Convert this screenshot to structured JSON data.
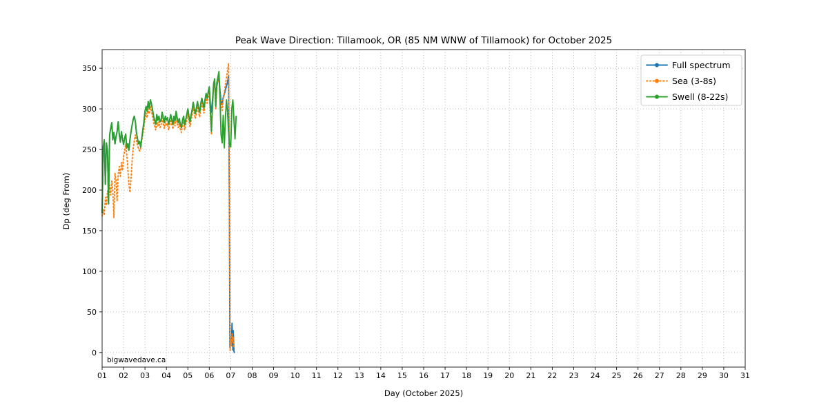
{
  "watermark": "bigwavedave.ca",
  "chart_data": {
    "type": "line",
    "title": "Peak Wave Direction: Tillamook, OR (85 NM WNW of Tillamook) for October 2025",
    "xlabel": "Day (October 2025)",
    "ylabel": "Dp (deg From)",
    "xlim": [
      1,
      31
    ],
    "ylim": [
      -18,
      373
    ],
    "yticks": [
      0,
      50,
      100,
      150,
      200,
      250,
      300,
      350
    ],
    "xticks": [
      "01",
      "02",
      "03",
      "04",
      "05",
      "06",
      "07",
      "08",
      "09",
      "10",
      "11",
      "12",
      "13",
      "14",
      "15",
      "16",
      "17",
      "18",
      "19",
      "20",
      "21",
      "22",
      "23",
      "24",
      "25",
      "26",
      "27",
      "28",
      "29",
      "30",
      "31"
    ],
    "grid": true,
    "grid_style": "dotted",
    "grid_color": "#b4b4b4",
    "legend_position": "upper right",
    "series": [
      {
        "name": "Full spectrum",
        "color": "#1f77b4",
        "style": "solid",
        "x": [
          1.0,
          1.05,
          1.1,
          1.15,
          1.2,
          1.25,
          1.3,
          1.35,
          1.4,
          1.45,
          1.5,
          1.55,
          1.6,
          1.65,
          1.7,
          1.75,
          1.8,
          1.85,
          1.9,
          1.95,
          2.0,
          2.05,
          2.1,
          2.15,
          2.2,
          2.25,
          2.3,
          2.35,
          2.4,
          2.45,
          2.5,
          2.55,
          2.6,
          2.65,
          2.7,
          2.75,
          2.8,
          2.85,
          2.9,
          2.95,
          3.0,
          3.05,
          3.1,
          3.15,
          3.2,
          3.25,
          3.3,
          3.35,
          3.4,
          3.45,
          3.5,
          3.55,
          3.6,
          3.65,
          3.7,
          3.75,
          3.8,
          3.85,
          3.9,
          3.95,
          4.0,
          4.05,
          4.1,
          4.15,
          4.2,
          4.25,
          4.3,
          4.35,
          4.4,
          4.45,
          4.5,
          4.55,
          4.6,
          4.65,
          4.7,
          4.75,
          4.8,
          4.85,
          4.9,
          4.95,
          5.0,
          5.05,
          5.1,
          5.15,
          5.2,
          5.25,
          5.3,
          5.35,
          5.4,
          5.45,
          5.5,
          5.55,
          5.6,
          5.65,
          5.7,
          5.75,
          5.8,
          5.85,
          5.9,
          5.95,
          6.0,
          6.05,
          6.1,
          6.15,
          6.2,
          6.25,
          6.3,
          6.35,
          6.4,
          6.45,
          6.5,
          6.55,
          6.6,
          6.65,
          6.7,
          6.75,
          6.8,
          6.85,
          6.9,
          6.94,
          6.96,
          7.0,
          7.03,
          7.06,
          7.08,
          7.1,
          7.12,
          7.15,
          7.17
        ],
        "y": [
          172,
          253,
          262,
          207,
          258,
          248,
          183,
          268,
          276,
          283,
          262,
          271,
          257,
          266,
          272,
          284,
          268,
          259,
          272,
          263,
          256,
          264,
          269,
          252,
          257,
          249,
          263,
          272,
          280,
          287,
          291,
          284,
          271,
          263,
          257,
          260,
          253,
          264,
          274,
          284,
          297,
          303,
          297,
          309,
          301,
          311,
          306,
          299,
          291,
          286,
          281,
          293,
          286,
          291,
          284,
          286,
          296,
          289,
          283,
          291,
          286,
          289,
          281,
          286,
          293,
          287,
          281,
          291,
          285,
          297,
          289,
          283,
          288,
          281,
          277,
          286,
          291,
          280,
          287,
          293,
          300,
          291,
          284,
          292,
          299,
          308,
          300,
          294,
          301,
          309,
          301,
          296,
          306,
          313,
          307,
          301,
          311,
          319,
          313,
          321,
          327,
          305,
          296,
          312,
          328,
          333,
          315,
          328,
          334,
          341,
          322,
          310,
          305,
          314,
          318,
          323,
          328,
          333,
          341,
          170,
          6,
          11,
          9,
          36,
          20,
          3,
          27,
          1,
          0
        ]
      },
      {
        "name": "Sea (3-8s)",
        "color": "#ff7f0e",
        "style": "dotted",
        "x": [
          1.0,
          1.05,
          1.1,
          1.15,
          1.2,
          1.25,
          1.3,
          1.35,
          1.4,
          1.45,
          1.5,
          1.55,
          1.6,
          1.65,
          1.7,
          1.75,
          1.8,
          1.85,
          1.9,
          1.95,
          2.0,
          2.05,
          2.1,
          2.15,
          2.2,
          2.25,
          2.3,
          2.35,
          2.4,
          2.45,
          2.5,
          2.55,
          2.6,
          2.65,
          2.7,
          2.75,
          2.8,
          2.85,
          2.9,
          2.95,
          3.0,
          3.05,
          3.1,
          3.15,
          3.2,
          3.25,
          3.3,
          3.35,
          3.4,
          3.45,
          3.5,
          3.55,
          3.6,
          3.65,
          3.7,
          3.75,
          3.8,
          3.85,
          3.9,
          3.95,
          4.0,
          4.05,
          4.1,
          4.15,
          4.2,
          4.25,
          4.3,
          4.35,
          4.4,
          4.45,
          4.5,
          4.55,
          4.6,
          4.65,
          4.7,
          4.75,
          4.8,
          4.85,
          4.9,
          4.95,
          5.0,
          5.05,
          5.1,
          5.15,
          5.2,
          5.25,
          5.3,
          5.35,
          5.4,
          5.45,
          5.5,
          5.55,
          5.6,
          5.65,
          5.7,
          5.75,
          5.8,
          5.85,
          5.9,
          5.95,
          6.0,
          6.05,
          6.1,
          6.15,
          6.2,
          6.25,
          6.3,
          6.35,
          6.4,
          6.45,
          6.5,
          6.55,
          6.6,
          6.65,
          6.7,
          6.75,
          6.8,
          6.85,
          6.9,
          6.94,
          6.97,
          7.0,
          7.03,
          7.06,
          7.09,
          7.12,
          7.15
        ],
        "y": [
          168,
          176,
          169,
          191,
          181,
          199,
          188,
          206,
          194,
          211,
          198,
          166,
          221,
          212,
          186,
          219,
          229,
          217,
          234,
          224,
          241,
          248,
          257,
          244,
          226,
          207,
          197,
          214,
          237,
          251,
          261,
          268,
          261,
          255,
          251,
          248,
          252,
          261,
          269,
          277,
          288,
          295,
          289,
          300,
          294,
          303,
          297,
          291,
          284,
          279,
          274,
          286,
          279,
          284,
          277,
          280,
          289,
          282,
          276,
          284,
          279,
          282,
          274,
          280,
          287,
          281,
          275,
          284,
          279,
          290,
          283,
          277,
          282,
          275,
          271,
          280,
          285,
          274,
          281,
          287,
          294,
          285,
          278,
          286,
          293,
          302,
          294,
          288,
          295,
          303,
          295,
          290,
          300,
          307,
          301,
          295,
          305,
          313,
          307,
          315,
          321,
          294,
          268,
          301,
          326,
          332,
          299,
          327,
          334,
          340,
          318,
          305,
          298,
          312,
          320,
          330,
          338,
          347,
          356,
          180,
          2,
          17,
          8,
          23,
          12,
          19,
          6
        ]
      },
      {
        "name": "Swell (8-22s)",
        "color": "#2ca02c",
        "style": "solid",
        "x": [
          1.0,
          1.05,
          1.1,
          1.15,
          1.2,
          1.25,
          1.3,
          1.35,
          1.4,
          1.45,
          1.5,
          1.55,
          1.6,
          1.65,
          1.7,
          1.75,
          1.8,
          1.85,
          1.9,
          1.95,
          2.0,
          2.05,
          2.1,
          2.15,
          2.2,
          2.25,
          2.3,
          2.35,
          2.4,
          2.45,
          2.5,
          2.55,
          2.6,
          2.65,
          2.7,
          2.75,
          2.8,
          2.85,
          2.9,
          2.95,
          3.0,
          3.05,
          3.1,
          3.15,
          3.2,
          3.25,
          3.3,
          3.35,
          3.4,
          3.45,
          3.5,
          3.55,
          3.6,
          3.65,
          3.7,
          3.75,
          3.8,
          3.85,
          3.9,
          3.95,
          4.0,
          4.05,
          4.1,
          4.15,
          4.2,
          4.25,
          4.3,
          4.35,
          4.4,
          4.45,
          4.5,
          4.55,
          4.6,
          4.65,
          4.7,
          4.75,
          4.8,
          4.85,
          4.9,
          4.95,
          5.0,
          5.05,
          5.1,
          5.15,
          5.2,
          5.25,
          5.3,
          5.35,
          5.4,
          5.45,
          5.5,
          5.55,
          5.6,
          5.65,
          5.7,
          5.75,
          5.8,
          5.85,
          5.9,
          5.95,
          6.0,
          6.05,
          6.1,
          6.15,
          6.2,
          6.25,
          6.3,
          6.35,
          6.4,
          6.45,
          6.5,
          6.55,
          6.6,
          6.65,
          6.7,
          6.75,
          6.8,
          6.85,
          6.9,
          6.95,
          7.0,
          7.05,
          7.1,
          7.15,
          7.2,
          7.25
        ],
        "y": [
          172,
          253,
          262,
          207,
          258,
          248,
          183,
          268,
          276,
          283,
          262,
          271,
          257,
          266,
          272,
          284,
          268,
          259,
          272,
          263,
          256,
          264,
          269,
          252,
          257,
          249,
          263,
          272,
          280,
          287,
          291,
          284,
          271,
          263,
          257,
          260,
          253,
          264,
          274,
          284,
          297,
          303,
          297,
          309,
          301,
          311,
          306,
          299,
          291,
          286,
          281,
          293,
          286,
          291,
          284,
          286,
          296,
          289,
          283,
          291,
          286,
          289,
          281,
          286,
          293,
          287,
          281,
          291,
          285,
          297,
          289,
          283,
          288,
          281,
          277,
          286,
          291,
          280,
          287,
          293,
          300,
          291,
          284,
          292,
          299,
          308,
          300,
          294,
          301,
          309,
          301,
          296,
          306,
          313,
          307,
          301,
          311,
          319,
          313,
          321,
          327,
          298,
          272,
          305,
          331,
          337,
          303,
          332,
          339,
          346,
          310,
          268,
          258,
          292,
          252,
          288,
          311,
          297,
          271,
          256,
          253,
          301,
          311,
          286,
          263,
          291
        ]
      }
    ]
  }
}
